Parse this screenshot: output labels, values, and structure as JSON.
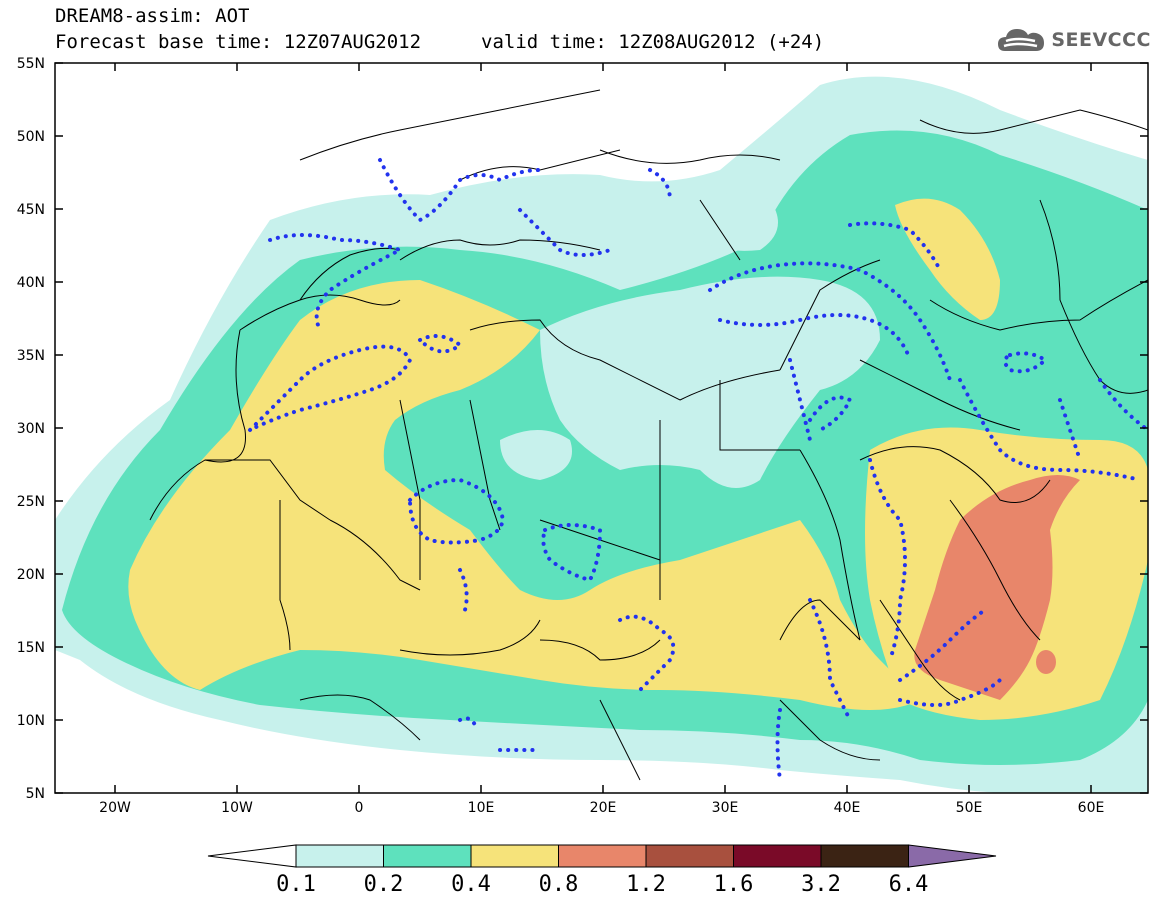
{
  "header": {
    "title": "DREAM8-assim: AOT",
    "base_time_label": "Forecast base time: 12Z07AUG2012",
    "valid_time_label": "valid time: 12Z08AUG2012 (+24)"
  },
  "logo": {
    "text": "SEEVCCC",
    "icon": "cloud-icon"
  },
  "map": {
    "lat_labels": [
      "55N",
      "50N",
      "45N",
      "40N",
      "35N",
      "30N",
      "25N",
      "20N",
      "15N",
      "10N",
      "5N"
    ],
    "lon_labels": [
      "20W",
      "10W",
      "0",
      "10E",
      "20E",
      "30E",
      "40E",
      "50E",
      "60E"
    ],
    "colors": {
      "c01": "#c7f1ec",
      "c02": "#5ee1bd",
      "c04": "#f6e37a",
      "c08": "#e8866a",
      "border": "#000000",
      "contour": "#2233ee"
    }
  },
  "colorbar": {
    "labels": [
      "0.1",
      "0.2",
      "0.4",
      "0.8",
      "1.2",
      "1.6",
      "3.2",
      "6.4"
    ],
    "low_color": "#ffffff",
    "colors": [
      "#c7f1ec",
      "#5ee1bd",
      "#f6e37a",
      "#e8866a",
      "#a8503e",
      "#7a0a28",
      "#3b2314"
    ],
    "high_color": "#8a6aa8"
  }
}
